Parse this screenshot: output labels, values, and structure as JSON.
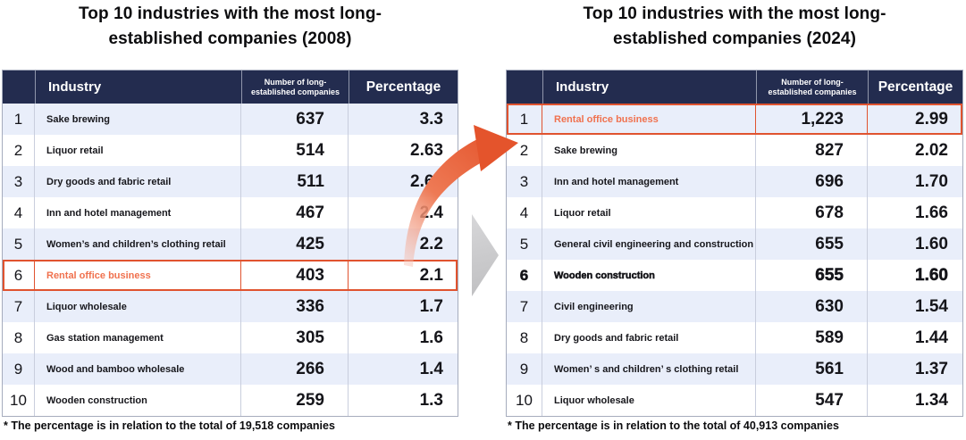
{
  "colors": {
    "header_bg": "#232c4f",
    "row_alt_bg": "#e9eefa",
    "highlight_border": "#e0532f",
    "highlight_text": "#f0714e",
    "arrow_orange": "#e4572f",
    "chevron_gray": "#c8c8ca"
  },
  "icons": {
    "curved-arrow-icon": "orange tapered swoosh arrow pointing upper-right",
    "chevron-right-icon": "▶"
  },
  "chart_data": [
    {
      "type": "table",
      "title": "Top 10 industries with the most long-established companies (2008)",
      "title_lines": [
        "Top 10 industries with the most long-",
        "established companies (2008)"
      ],
      "column_labels": {
        "rank": "",
        "industry": "Industry",
        "count": "Number of long-established companies",
        "percentage": "Percentage"
      },
      "rows": [
        {
          "rank": "1",
          "industry": "Sake brewing",
          "count": "637",
          "percentage": "3.3"
        },
        {
          "rank": "2",
          "industry": "Liquor retail",
          "count": "514",
          "percentage": "2.63"
        },
        {
          "rank": "3",
          "industry": "Dry goods and fabric retail",
          "count": "511",
          "percentage": "2.62"
        },
        {
          "rank": "4",
          "industry": "Inn and hotel management",
          "count": "467",
          "percentage": "2.4"
        },
        {
          "rank": "5",
          "industry": "Women’s and children’s clothing retail",
          "count": "425",
          "percentage": "2.2"
        },
        {
          "rank": "6",
          "industry": "Rental office business",
          "count": "403",
          "percentage": "2.1",
          "highlight": true
        },
        {
          "rank": "7",
          "industry": "Liquor wholesale",
          "count": "336",
          "percentage": "1.7"
        },
        {
          "rank": "8",
          "industry": "Gas station management",
          "count": "305",
          "percentage": "1.6"
        },
        {
          "rank": "9",
          "industry": "Wood and bamboo wholesale",
          "count": "266",
          "percentage": "1.4"
        },
        {
          "rank": "10",
          "industry": "Wooden construction",
          "count": "259",
          "percentage": "1.3"
        }
      ],
      "footnote": "* The percentage is in relation to the total of 19,518 companies"
    },
    {
      "type": "table",
      "title": "Top 10 industries with the most long-established companies (2024)",
      "title_lines": [
        "Top 10 industries with the most long-",
        "established companies (2024)"
      ],
      "column_labels": {
        "rank": "",
        "industry": "Industry",
        "count": "Number of long-established companies",
        "percentage": "Percentage"
      },
      "rows": [
        {
          "rank": "1",
          "industry": "Rental office business",
          "count": "1,223",
          "percentage": "2.99",
          "highlight": true
        },
        {
          "rank": "2",
          "industry": "Sake brewing",
          "count": "827",
          "percentage": "2.02"
        },
        {
          "rank": "3",
          "industry": "Inn and hotel management",
          "count": "696",
          "percentage": "1.70"
        },
        {
          "rank": "4",
          "industry": "Liquor retail",
          "count": "678",
          "percentage": "1.66"
        },
        {
          "rank": "5",
          "industry": "General civil engineering and construction",
          "count": "655",
          "percentage": "1.60"
        },
        {
          "rank": "6",
          "industry": "Wooden construction",
          "count": "655",
          "percentage": "1.60",
          "heavy": true
        },
        {
          "rank": "7",
          "industry": "Civil engineering",
          "count": "630",
          "percentage": "1.54"
        },
        {
          "rank": "8",
          "industry": "Dry goods and fabric retail",
          "count": "589",
          "percentage": "1.44"
        },
        {
          "rank": "9",
          "industry": "Women’ s and children’ s clothing retail",
          "count": "561",
          "percentage": "1.37"
        },
        {
          "rank": "10",
          "industry": "Liquor wholesale",
          "count": "547",
          "percentage": "1.34"
        }
      ],
      "footnote": "* The percentage is in relation to the total of 40,913 companies"
    }
  ]
}
